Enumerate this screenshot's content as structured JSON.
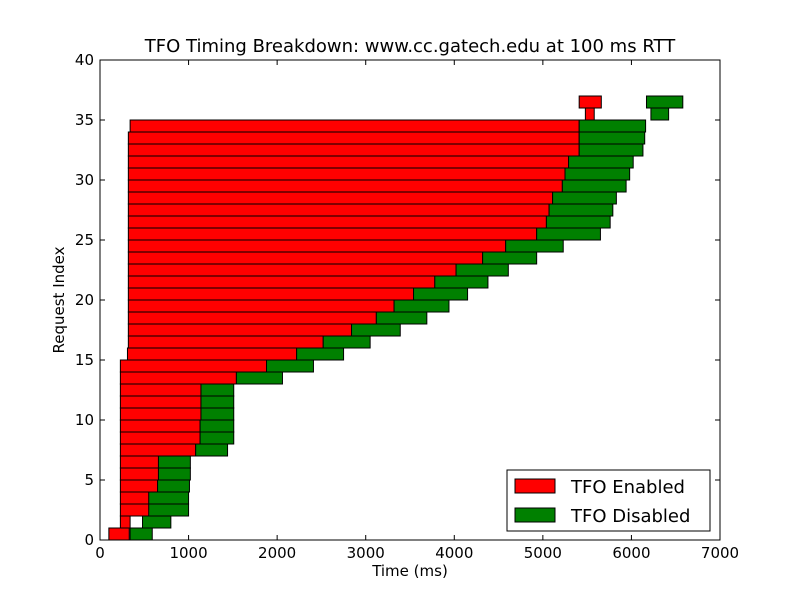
{
  "chart_data": {
    "type": "bar",
    "orientation": "horizontal-ranges",
    "title": "TFO Timing Breakdown: www.cc.gatech.edu at 100 ms RTT",
    "xlabel": "Time (ms)",
    "ylabel": "Request Index",
    "xlim": [
      0,
      7000
    ],
    "ylim": [
      0,
      40
    ],
    "xticks": [
      0,
      1000,
      2000,
      3000,
      4000,
      5000,
      6000,
      7000
    ],
    "yticks": [
      0,
      5,
      10,
      15,
      20,
      25,
      30,
      35,
      40
    ],
    "grid": false,
    "legend_position": "bottom-right",
    "series": [
      {
        "name": "TFO Enabled",
        "color": "#ff0000",
        "bars": [
          {
            "index": 0,
            "start": 100,
            "end": 330
          },
          {
            "index": 1,
            "start": 230,
            "end": 340
          },
          {
            "index": 2,
            "start": 230,
            "end": 560
          },
          {
            "index": 3,
            "start": 230,
            "end": 560
          },
          {
            "index": 4,
            "start": 230,
            "end": 650
          },
          {
            "index": 5,
            "start": 230,
            "end": 660
          },
          {
            "index": 6,
            "start": 230,
            "end": 660
          },
          {
            "index": 7,
            "start": 230,
            "end": 1080
          },
          {
            "index": 8,
            "start": 230,
            "end": 1130
          },
          {
            "index": 9,
            "start": 230,
            "end": 1130
          },
          {
            "index": 10,
            "start": 230,
            "end": 1140
          },
          {
            "index": 11,
            "start": 230,
            "end": 1140
          },
          {
            "index": 12,
            "start": 230,
            "end": 1140
          },
          {
            "index": 13,
            "start": 230,
            "end": 1540
          },
          {
            "index": 14,
            "start": 230,
            "end": 1880
          },
          {
            "index": 15,
            "start": 310,
            "end": 2220
          },
          {
            "index": 16,
            "start": 320,
            "end": 2520
          },
          {
            "index": 17,
            "start": 320,
            "end": 2840
          },
          {
            "index": 18,
            "start": 320,
            "end": 3120
          },
          {
            "index": 19,
            "start": 320,
            "end": 3320
          },
          {
            "index": 20,
            "start": 320,
            "end": 3540
          },
          {
            "index": 21,
            "start": 320,
            "end": 3780
          },
          {
            "index": 22,
            "start": 320,
            "end": 4020
          },
          {
            "index": 23,
            "start": 320,
            "end": 4320
          },
          {
            "index": 24,
            "start": 320,
            "end": 4580
          },
          {
            "index": 25,
            "start": 320,
            "end": 4930
          },
          {
            "index": 26,
            "start": 320,
            "end": 5040
          },
          {
            "index": 27,
            "start": 320,
            "end": 5070
          },
          {
            "index": 28,
            "start": 320,
            "end": 5110
          },
          {
            "index": 29,
            "start": 320,
            "end": 5220
          },
          {
            "index": 30,
            "start": 320,
            "end": 5250
          },
          {
            "index": 31,
            "start": 320,
            "end": 5290
          },
          {
            "index": 32,
            "start": 320,
            "end": 5410
          },
          {
            "index": 33,
            "start": 320,
            "end": 5410
          },
          {
            "index": 34,
            "start": 340,
            "end": 5410
          },
          {
            "index": 35,
            "start": 5480,
            "end": 5580
          },
          {
            "index": 36,
            "start": 5410,
            "end": 5660
          }
        ]
      },
      {
        "name": "TFO Disabled",
        "color": "#008000",
        "bars": [
          {
            "index": 0,
            "start": 340,
            "end": 590
          },
          {
            "index": 1,
            "start": 480,
            "end": 800
          },
          {
            "index": 2,
            "start": 550,
            "end": 1000
          },
          {
            "index": 3,
            "start": 550,
            "end": 1000
          },
          {
            "index": 4,
            "start": 650,
            "end": 1010
          },
          {
            "index": 5,
            "start": 660,
            "end": 1020
          },
          {
            "index": 6,
            "start": 660,
            "end": 1020
          },
          {
            "index": 7,
            "start": 1080,
            "end": 1440
          },
          {
            "index": 8,
            "start": 1130,
            "end": 1510
          },
          {
            "index": 9,
            "start": 1130,
            "end": 1510
          },
          {
            "index": 10,
            "start": 1140,
            "end": 1510
          },
          {
            "index": 11,
            "start": 1140,
            "end": 1510
          },
          {
            "index": 12,
            "start": 1140,
            "end": 1510
          },
          {
            "index": 13,
            "start": 1540,
            "end": 2060
          },
          {
            "index": 14,
            "start": 1880,
            "end": 2410
          },
          {
            "index": 15,
            "start": 2220,
            "end": 2750
          },
          {
            "index": 16,
            "start": 2520,
            "end": 3050
          },
          {
            "index": 17,
            "start": 2840,
            "end": 3390
          },
          {
            "index": 18,
            "start": 3120,
            "end": 3690
          },
          {
            "index": 19,
            "start": 3320,
            "end": 3940
          },
          {
            "index": 20,
            "start": 3540,
            "end": 4150
          },
          {
            "index": 21,
            "start": 3780,
            "end": 4380
          },
          {
            "index": 22,
            "start": 4020,
            "end": 4610
          },
          {
            "index": 23,
            "start": 4320,
            "end": 4930
          },
          {
            "index": 24,
            "start": 4580,
            "end": 5230
          },
          {
            "index": 25,
            "start": 4930,
            "end": 5650
          },
          {
            "index": 26,
            "start": 5040,
            "end": 5760
          },
          {
            "index": 27,
            "start": 5070,
            "end": 5790
          },
          {
            "index": 28,
            "start": 5110,
            "end": 5830
          },
          {
            "index": 29,
            "start": 5220,
            "end": 5940
          },
          {
            "index": 30,
            "start": 5250,
            "end": 5980
          },
          {
            "index": 31,
            "start": 5290,
            "end": 6020
          },
          {
            "index": 32,
            "start": 5410,
            "end": 6130
          },
          {
            "index": 33,
            "start": 5410,
            "end": 6150
          },
          {
            "index": 34,
            "start": 5410,
            "end": 6160
          },
          {
            "index": 35,
            "start": 6220,
            "end": 6420
          },
          {
            "index": 36,
            "start": 6170,
            "end": 6580
          }
        ]
      }
    ]
  }
}
